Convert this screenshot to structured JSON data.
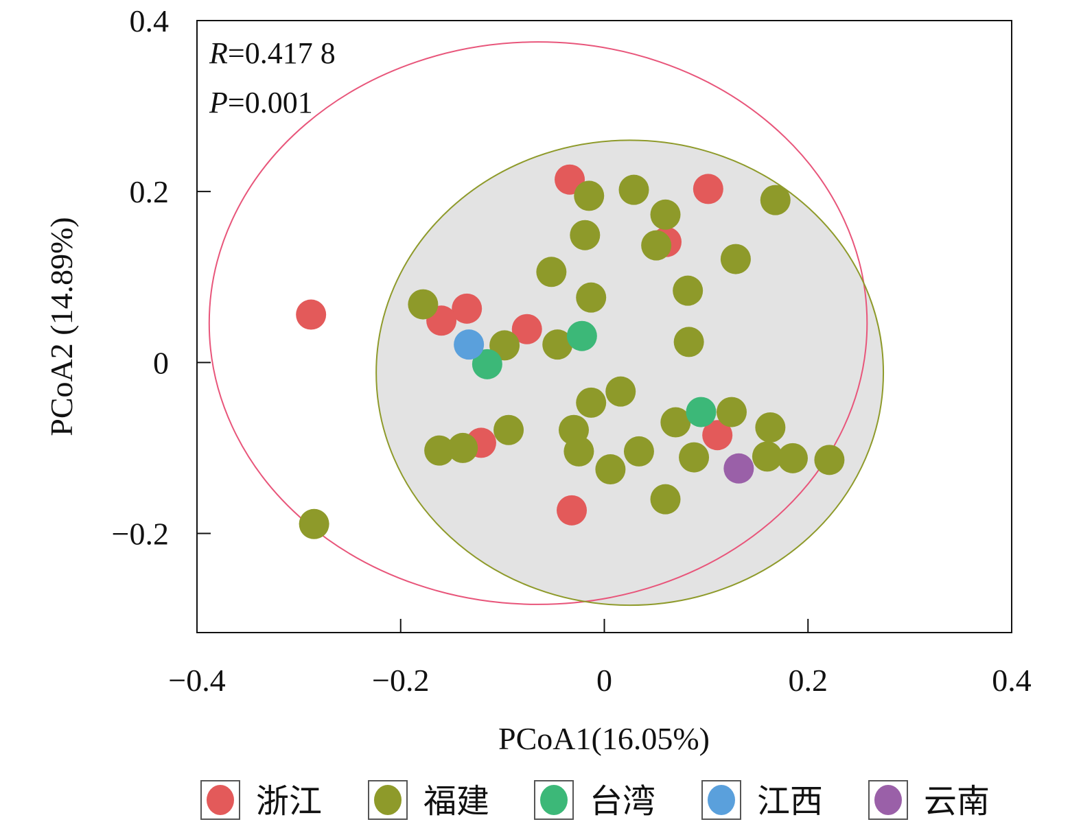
{
  "chart_data": {
    "type": "scatter",
    "title": "",
    "xlabel": "PCoA1(16.05%)",
    "ylabel": "PCoA2 (14.89%)",
    "xlim": [
      -0.4,
      0.4
    ],
    "ylim": [
      -0.316,
      0.4
    ],
    "xticks": [
      -0.4,
      -0.2,
      0,
      0.2,
      0.4
    ],
    "xtick_labels": [
      "−0.4",
      "−0.2",
      "0",
      "0.2",
      "0.4"
    ],
    "yticks": [
      0.4,
      0.2,
      0,
      -0.2
    ],
    "ytick_labels": [
      "0.4",
      "0.2",
      "0",
      "−0.2"
    ],
    "grid": false,
    "legend_placement": "bottom",
    "annotations": {
      "r_label": "R",
      "r_value": "=0.417 8",
      "p_label": "P",
      "p_value": "=0.001"
    },
    "ellipses": [
      {
        "series": "浙江",
        "cx": -0.065,
        "cy": 0.046,
        "rx": 0.323,
        "ry": 0.329,
        "color": "#e8557a",
        "fill": "none"
      },
      {
        "series": "福建",
        "cx": 0.025,
        "cy": -0.012,
        "rx": 0.249,
        "ry": 0.272,
        "color": "#8e9a2a",
        "fill": "#e3e3e3"
      }
    ],
    "series": [
      {
        "name": "浙江",
        "color": "#e35a5a",
        "points": [
          [
            -0.034,
            0.214
          ],
          [
            0.102,
            0.203
          ],
          [
            0.061,
            0.141
          ],
          [
            -0.288,
            0.056
          ],
          [
            -0.135,
            0.063
          ],
          [
            -0.16,
            0.049
          ],
          [
            -0.076,
            0.039
          ],
          [
            -0.121,
            -0.094
          ],
          [
            0.111,
            -0.085
          ],
          [
            -0.032,
            -0.173
          ]
        ]
      },
      {
        "name": "福建",
        "color": "#8e9a2a",
        "points": [
          [
            -0.015,
            0.195
          ],
          [
            0.029,
            0.202
          ],
          [
            0.06,
            0.173
          ],
          [
            0.168,
            0.19
          ],
          [
            -0.019,
            0.149
          ],
          [
            0.051,
            0.137
          ],
          [
            0.129,
            0.121
          ],
          [
            -0.052,
            0.106
          ],
          [
            -0.178,
            0.068
          ],
          [
            -0.013,
            0.076
          ],
          [
            0.082,
            0.084
          ],
          [
            -0.098,
            0.02
          ],
          [
            -0.046,
            0.021
          ],
          [
            0.083,
            0.024
          ],
          [
            0.016,
            -0.034
          ],
          [
            -0.013,
            -0.047
          ],
          [
            0.07,
            -0.07
          ],
          [
            0.125,
            -0.058
          ],
          [
            -0.094,
            -0.079
          ],
          [
            -0.03,
            -0.079
          ],
          [
            0.163,
            -0.076
          ],
          [
            -0.162,
            -0.103
          ],
          [
            -0.139,
            -0.1
          ],
          [
            -0.025,
            -0.104
          ],
          [
            0.034,
            -0.104
          ],
          [
            0.088,
            -0.111
          ],
          [
            0.16,
            -0.11
          ],
          [
            0.185,
            -0.112
          ],
          [
            0.221,
            -0.114
          ],
          [
            0.006,
            -0.125
          ],
          [
            0.06,
            -0.16
          ],
          [
            -0.285,
            -0.189
          ]
        ]
      },
      {
        "name": "台湾",
        "color": "#3cb878",
        "points": [
          [
            -0.022,
            0.031
          ],
          [
            -0.115,
            -0.002
          ],
          [
            0.095,
            -0.058
          ]
        ]
      },
      {
        "name": "江西",
        "color": "#5aa0dc",
        "points": [
          [
            -0.133,
            0.021
          ]
        ]
      },
      {
        "name": "云南",
        "color": "#9a60a8",
        "points": [
          [
            0.132,
            -0.124
          ]
        ]
      }
    ]
  }
}
